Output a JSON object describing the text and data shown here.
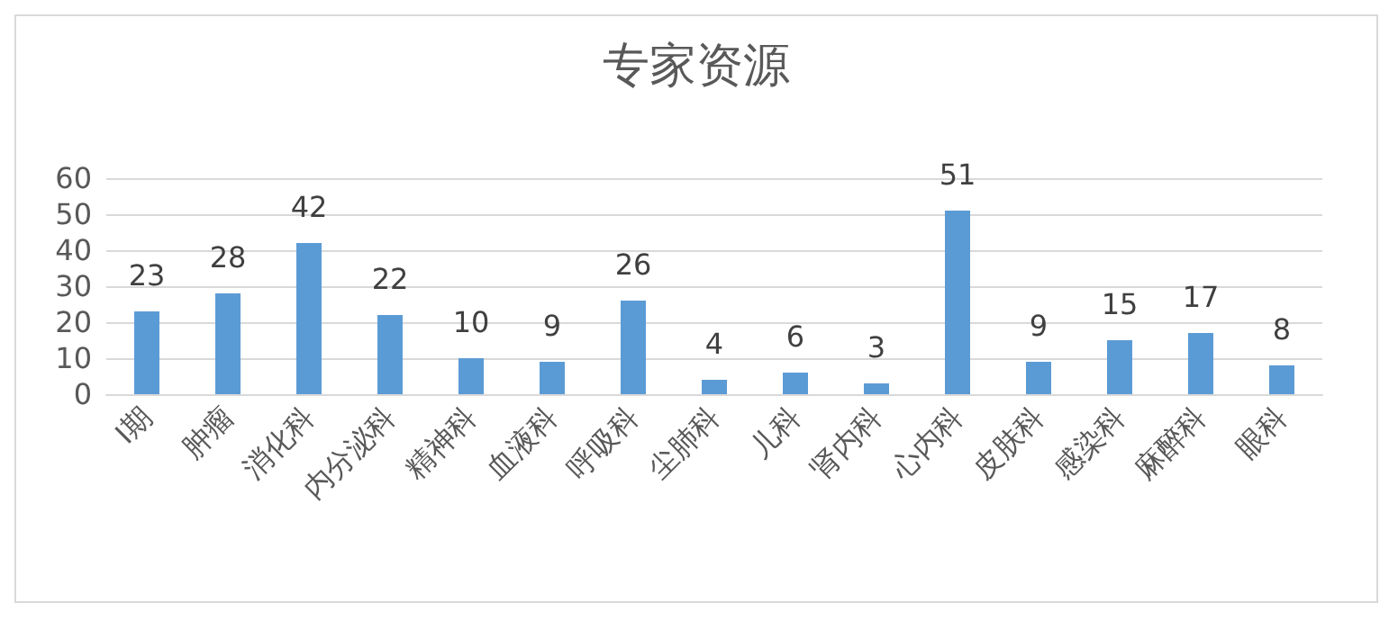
{
  "chart_data": {
    "type": "bar",
    "title": "专家资源",
    "categories": [
      "I期",
      "肿瘤",
      "消化科",
      "内分泌科",
      "精神科",
      "血液科",
      "呼吸科",
      "尘肺科",
      "儿科",
      "肾内科",
      "心内科",
      "皮肤科",
      "感染科",
      "麻醉科",
      "眼科"
    ],
    "values": [
      23,
      28,
      42,
      22,
      10,
      9,
      26,
      4,
      6,
      3,
      51,
      9,
      15,
      17,
      8
    ],
    "color": "#5b9bd5",
    "ylim": [
      0,
      60
    ],
    "yticks": [
      0,
      10,
      20,
      30,
      40,
      50,
      60
    ],
    "grid": "y",
    "data_labels": true
  }
}
